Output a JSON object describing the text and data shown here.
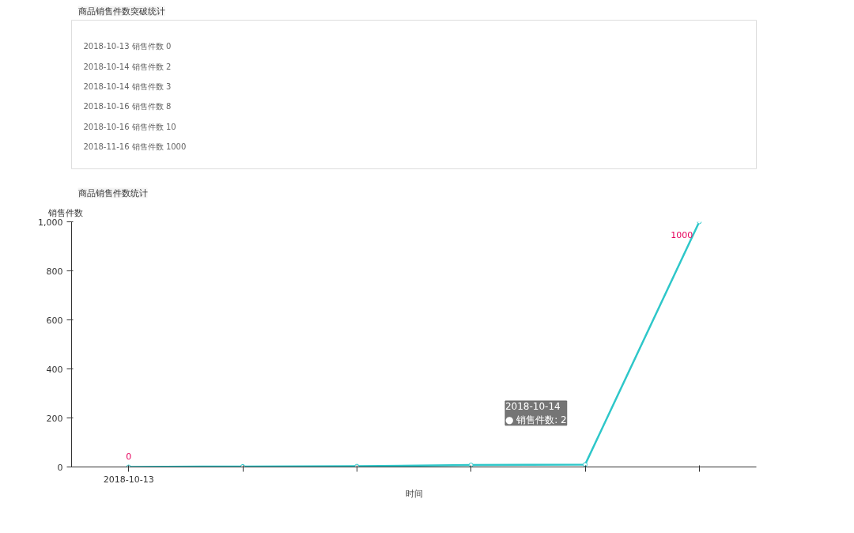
{
  "chart_data": [
    {
      "type": "other",
      "title": "商品销售件数突破统计",
      "annotations": [
        "2018-10-13   销售件数   0",
        "2018-10-14   销售件数   2",
        "2018-10-14   销售件数   3",
        "2018-10-16   销售件数   8",
        "2018-10-16   销售件数   10",
        "2018-11-16   销售件数   1000"
      ]
    },
    {
      "type": "line",
      "title": "商品销售件数统计",
      "xlabel": "时间",
      "ylabel": "销售件数",
      "categories": [
        "2018-10-13",
        null,
        null,
        null,
        null,
        null
      ],
      "series": [
        {
          "color": "#2ec7c9",
          "values": [
            0,
            2,
            3,
            8,
            10,
            1000
          ]
        }
      ],
      "ylim": [
        0,
        1000
      ],
      "yticks": [
        0,
        200,
        400,
        600,
        800,
        {
          "value": 1000,
          "label": "1,000"
        }
      ],
      "marker": "circle",
      "line_style": "solid",
      "grid": false,
      "annotations": [
        {
          "text": "0",
          "x": "2018-10-13",
          "y": 0
        },
        "1000",
        "2018-10-14\n● 销售件数: 2"
      ]
    }
  ]
}
